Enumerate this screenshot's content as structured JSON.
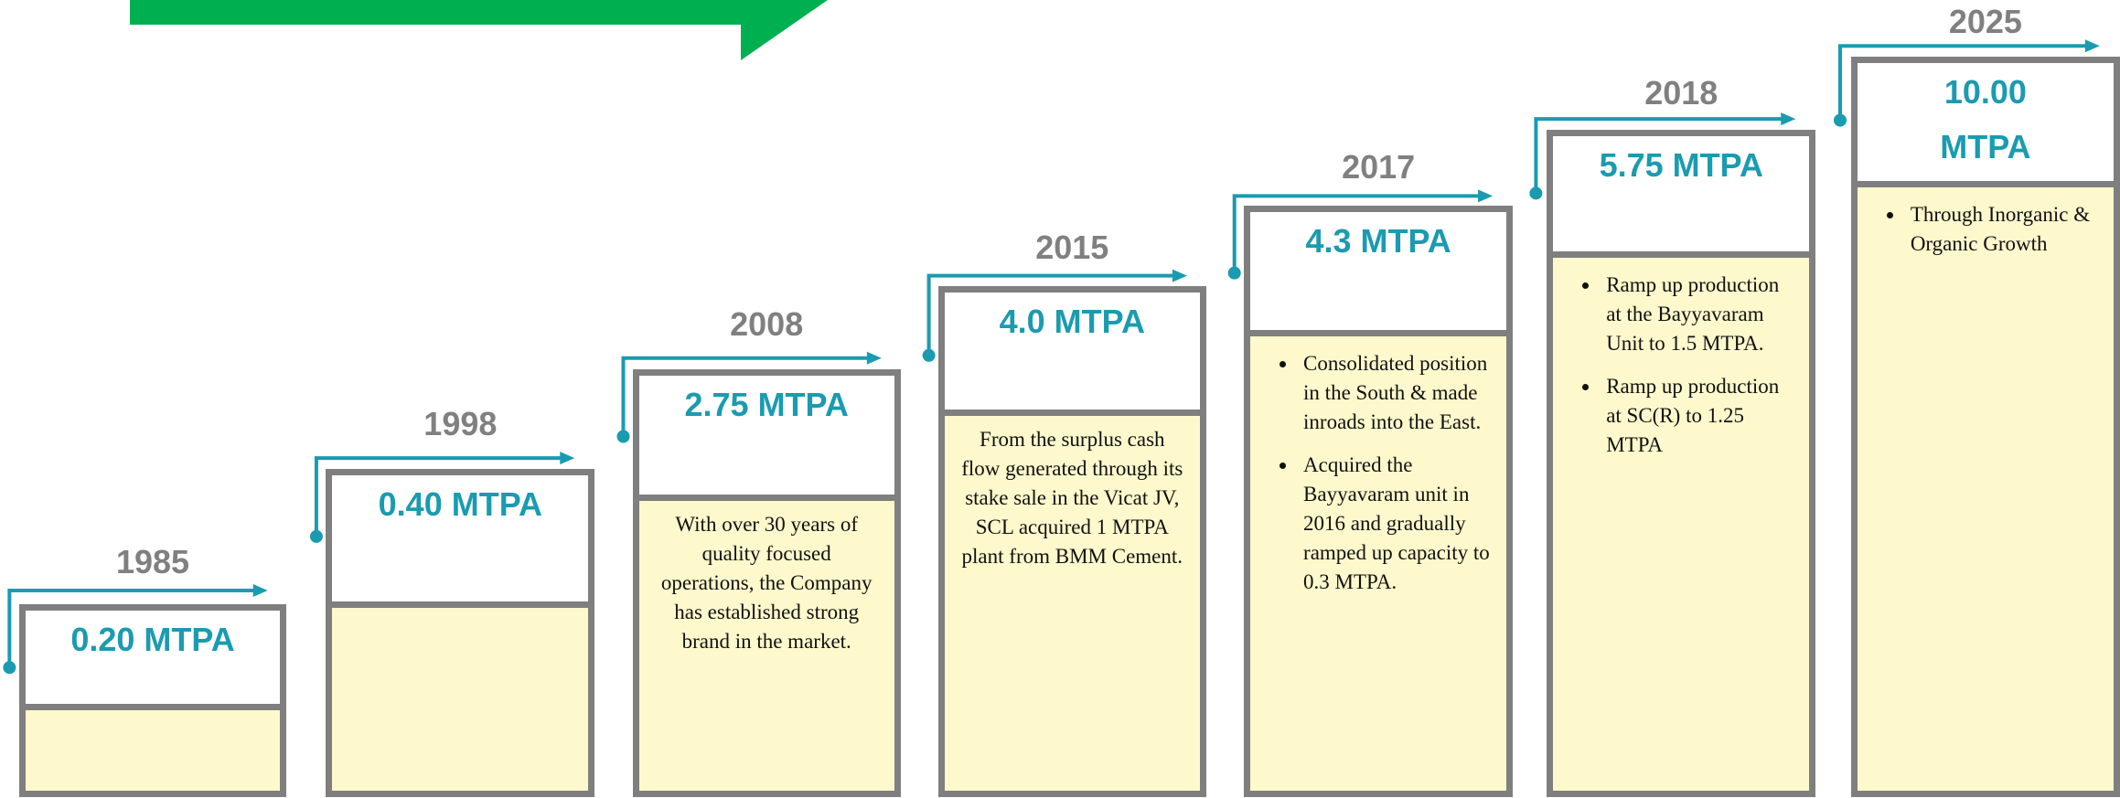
{
  "milestones": [
    {
      "year": "1985",
      "capacity": "0.20 MTPA"
    },
    {
      "year": "1998",
      "capacity": "0.40 MTPA"
    },
    {
      "year": "2008",
      "capacity": "2.75 MTPA",
      "description": "With over 30 years of quality focused operations, the Company has established strong brand in the market."
    },
    {
      "year": "2015",
      "capacity": "4.0 MTPA",
      "description": "From the surplus cash flow generated through its stake sale in the Vicat JV, SCL acquired 1 MTPA plant from BMM Cement."
    },
    {
      "year": "2017",
      "capacity": "4.3 MTPA",
      "bullets": [
        "Consolidated position in the South & made inroads into the East.",
        "Acquired the Bayyavaram unit in 2016 and gradually ramped up capacity to 0.3 MTPA."
      ]
    },
    {
      "year": "2018",
      "capacity": "5.75 MTPA",
      "bullets": [
        "Ramp up production at the Bayyavaram Unit to 1.5 MTPA.",
        "Ramp up production at SC(R) to 1.25 MTPA"
      ]
    },
    {
      "year": "2025",
      "capacity": "10.00 MTPA",
      "bullets": [
        "Through Inorganic & Organic Growth"
      ]
    }
  ]
}
